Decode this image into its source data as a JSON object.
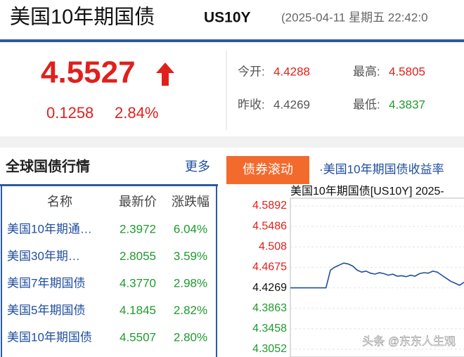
{
  "header": {
    "title": "美国10年期国债",
    "code": "US10Y",
    "datetime": "(2025-04-11 星期五 22:42:0"
  },
  "quote": {
    "price": "4.5527",
    "change": "0.1258",
    "change_pct": "2.84%",
    "open_label": "今开:",
    "open": "4.4288",
    "high_label": "最高:",
    "high": "4.5805",
    "prev_close_label": "昨收:",
    "prev_close": "4.4269",
    "low_label": "最低:",
    "low": "4.3837"
  },
  "global_bonds": {
    "title": "全球国债行情",
    "more": "更多",
    "columns": [
      "名称",
      "最新价",
      "涨跌幅"
    ],
    "rows": [
      [
        "美国10年期通…",
        "2.3972",
        "6.04%"
      ],
      [
        "美国30年期…",
        "2.8055",
        "3.59%"
      ],
      [
        "美国7年期国债",
        "4.3770",
        "2.98%"
      ],
      [
        "美国5年期国债",
        "4.1845",
        "2.82%"
      ],
      [
        "美国10年期国债",
        "4.5507",
        "2.80%"
      ]
    ]
  },
  "ticker": {
    "tab": "债券滚动",
    "headline": "·美国10年期国债收益率"
  },
  "chart": {
    "type": "line",
    "title": "美国10年期国债[US10Y] 2025-",
    "ylim": [
      4.3052,
      4.5892
    ],
    "yticks": [
      4.5892,
      4.5486,
      4.508,
      4.4675,
      4.4269,
      4.3863,
      4.3458,
      4.3052
    ],
    "reference": 4.4269,
    "color": "#1f4e9e",
    "values": [
      4.4269,
      4.4269,
      4.4269,
      4.4269,
      4.4269,
      4.4269,
      4.4269,
      4.4269,
      4.4269,
      4.462,
      4.468,
      4.472,
      4.476,
      4.474,
      4.47,
      4.462,
      4.458,
      4.46,
      4.456,
      4.454,
      4.457,
      4.455,
      4.452,
      4.454,
      4.45,
      4.451,
      4.449,
      4.452,
      4.45,
      4.455,
      4.457,
      4.456,
      4.46,
      4.458,
      4.452,
      4.446,
      4.44,
      4.436,
      4.432,
      4.438
    ]
  },
  "watermark": "头条 @东东人生观"
}
